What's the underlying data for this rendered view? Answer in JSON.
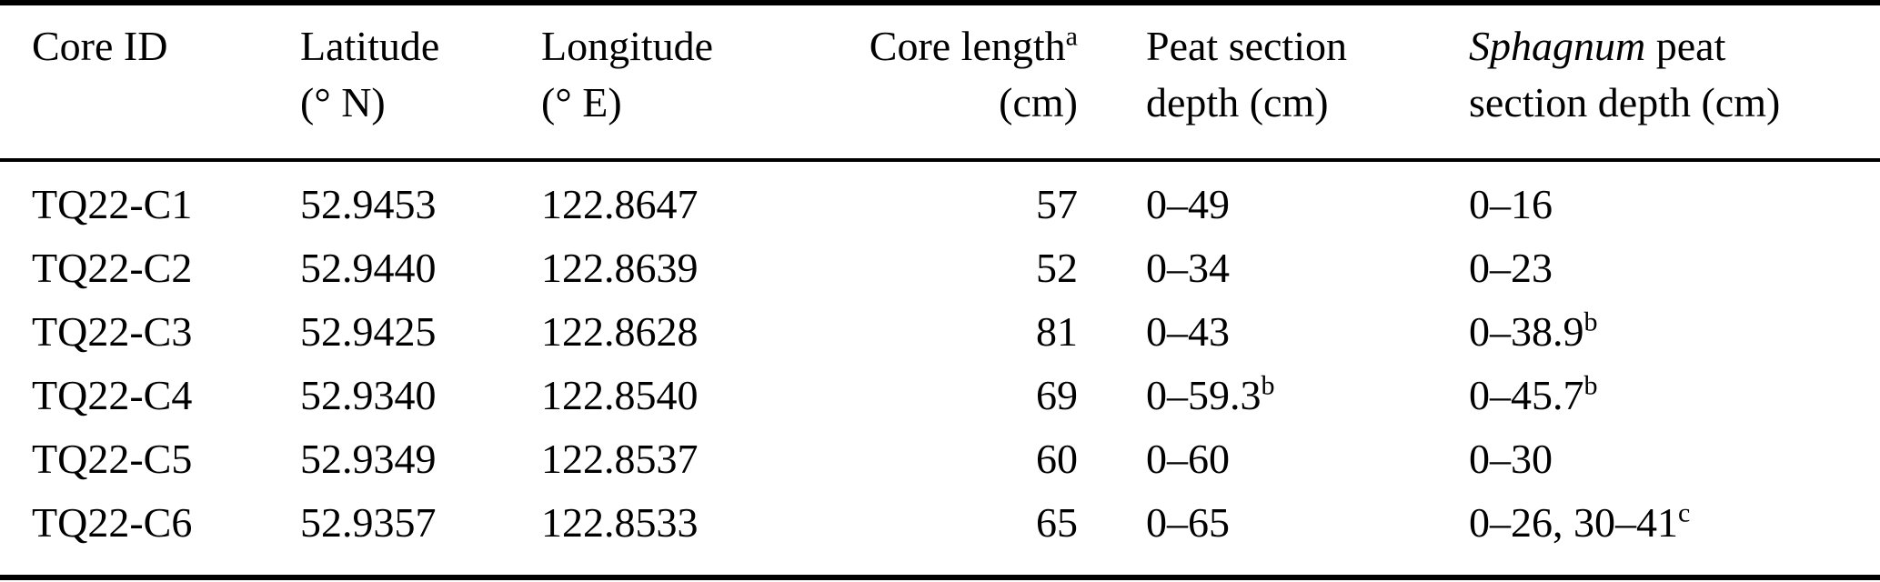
{
  "colors": {
    "background": "#ffffff",
    "text": "#000000",
    "rule": "#000000"
  },
  "table": {
    "columns": [
      {
        "id": "core-id",
        "lines": [
          [
            {
              "text": "Core ID"
            }
          ]
        ]
      },
      {
        "id": "latitude",
        "lines": [
          [
            {
              "text": "Latitude"
            }
          ],
          [
            {
              "text": "(° N)"
            }
          ]
        ]
      },
      {
        "id": "longitude",
        "lines": [
          [
            {
              "text": "Longitude"
            }
          ],
          [
            {
              "text": "(° E)"
            }
          ]
        ]
      },
      {
        "id": "core-length",
        "lines": [
          [
            {
              "text": "Core length"
            },
            {
              "text": "a",
              "sup": true
            }
          ],
          [
            {
              "text": "(cm)"
            }
          ]
        ]
      },
      {
        "id": "peat-section-depth",
        "lines": [
          [
            {
              "text": "Peat section"
            }
          ],
          [
            {
              "text": "depth (cm)"
            }
          ]
        ]
      },
      {
        "id": "sphagnum-peat-section-depth",
        "lines": [
          [
            {
              "text": "Sphagnum",
              "italic": true
            },
            {
              "text": " peat"
            }
          ],
          [
            {
              "text": "section depth (cm)"
            }
          ]
        ]
      }
    ],
    "rows": [
      {
        "cells": [
          [
            {
              "text": "TQ22-C1"
            }
          ],
          [
            {
              "text": "52.9453"
            }
          ],
          [
            {
              "text": "122.8647"
            }
          ],
          [
            {
              "text": "57"
            }
          ],
          [
            {
              "text": "0–49"
            }
          ],
          [
            {
              "text": "0–16"
            }
          ]
        ]
      },
      {
        "cells": [
          [
            {
              "text": "TQ22-C2"
            }
          ],
          [
            {
              "text": "52.9440"
            }
          ],
          [
            {
              "text": "122.8639"
            }
          ],
          [
            {
              "text": "52"
            }
          ],
          [
            {
              "text": "0–34"
            }
          ],
          [
            {
              "text": "0–23"
            }
          ]
        ]
      },
      {
        "cells": [
          [
            {
              "text": "TQ22-C3"
            }
          ],
          [
            {
              "text": "52.9425"
            }
          ],
          [
            {
              "text": "122.8628"
            }
          ],
          [
            {
              "text": "81"
            }
          ],
          [
            {
              "text": "0–43"
            }
          ],
          [
            {
              "text": "0–38.9"
            },
            {
              "text": "b",
              "sup": true
            }
          ]
        ]
      },
      {
        "cells": [
          [
            {
              "text": "TQ22-C4"
            }
          ],
          [
            {
              "text": "52.9340"
            }
          ],
          [
            {
              "text": "122.8540"
            }
          ],
          [
            {
              "text": "69"
            }
          ],
          [
            {
              "text": "0–59.3"
            },
            {
              "text": "b",
              "sup": true
            }
          ],
          [
            {
              "text": "0–45.7"
            },
            {
              "text": "b",
              "sup": true
            }
          ]
        ]
      },
      {
        "cells": [
          [
            {
              "text": "TQ22-C5"
            }
          ],
          [
            {
              "text": "52.9349"
            }
          ],
          [
            {
              "text": "122.8537"
            }
          ],
          [
            {
              "text": "60"
            }
          ],
          [
            {
              "text": "0–60"
            }
          ],
          [
            {
              "text": "0–30"
            }
          ]
        ]
      },
      {
        "cells": [
          [
            {
              "text": "TQ22-C6"
            }
          ],
          [
            {
              "text": "52.9357"
            }
          ],
          [
            {
              "text": "122.8533"
            }
          ],
          [
            {
              "text": "65"
            }
          ],
          [
            {
              "text": "0–65"
            }
          ],
          [
            {
              "text": "0–26, 30–41"
            },
            {
              "text": "c",
              "sup": true
            }
          ]
        ]
      }
    ]
  }
}
